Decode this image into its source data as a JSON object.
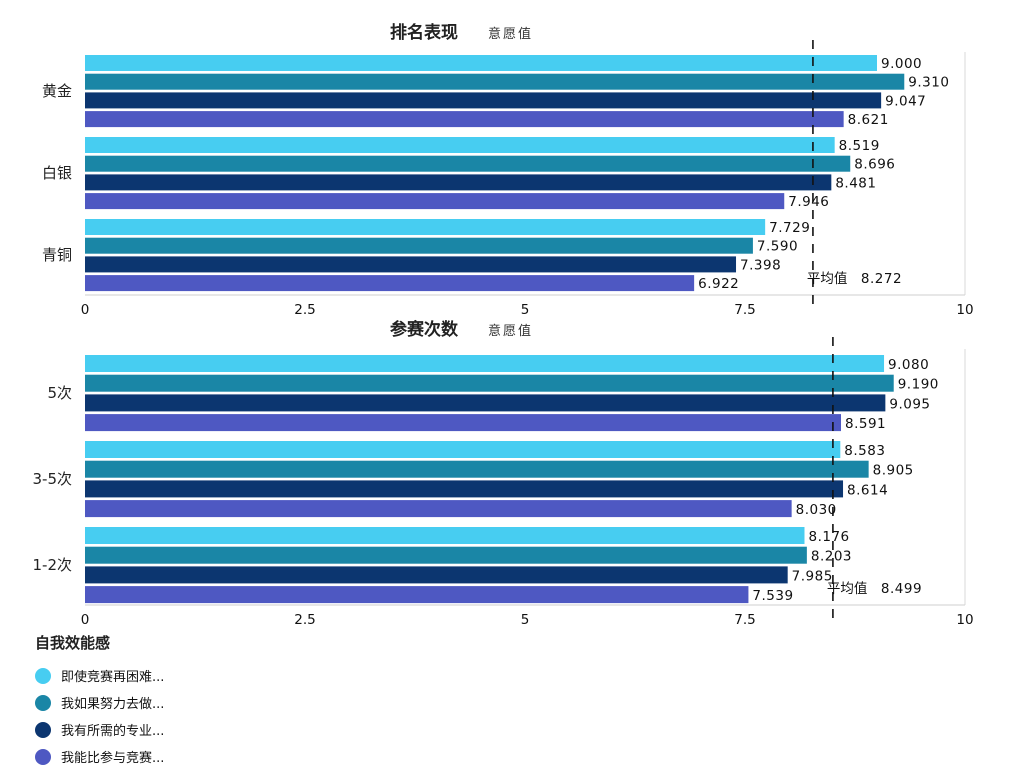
{
  "chart_data": [
    {
      "type": "bar",
      "orientation": "horizontal",
      "title": "排名表现",
      "subtitle": "意愿值",
      "categories": [
        "黄金",
        "白银",
        "青铜"
      ],
      "series": [
        {
          "name": "即使竞赛再困难...",
          "values": [
            9.0,
            8.519,
            7.729
          ]
        },
        {
          "name": "我如果努力去做...",
          "values": [
            9.31,
            8.696,
            7.59
          ]
        },
        {
          "name": "我有所需的专业...",
          "values": [
            9.047,
            8.481,
            7.398
          ]
        },
        {
          "name": "我能比参与竞赛...",
          "values": [
            8.621,
            7.946,
            6.922
          ]
        }
      ],
      "xlim": [
        0,
        10
      ],
      "ticks": [
        0,
        2.5,
        5,
        7.5,
        10
      ],
      "tick_labels": [
        "0",
        "2.5",
        "5",
        "7.5",
        "10"
      ],
      "average": 8.272,
      "average_label": "平均值",
      "average_text": "8.272"
    },
    {
      "type": "bar",
      "orientation": "horizontal",
      "title": "参赛次数",
      "subtitle": "意愿值",
      "categories": [
        "5次",
        "3-5次",
        "1-2次"
      ],
      "series": [
        {
          "name": "即使竞赛再困难...",
          "values": [
            9.08,
            8.583,
            8.176
          ]
        },
        {
          "name": "我如果努力去做...",
          "values": [
            9.19,
            8.905,
            8.203
          ]
        },
        {
          "name": "我有所需的专业...",
          "values": [
            9.095,
            8.614,
            7.985
          ]
        },
        {
          "name": "我能比参与竞赛...",
          "values": [
            8.591,
            8.03,
            7.539
          ]
        }
      ],
      "xlim": [
        0,
        10
      ],
      "ticks": [
        0,
        2.5,
        5,
        7.5,
        10
      ],
      "tick_labels": [
        "0",
        "2.5",
        "5",
        "7.5",
        "10"
      ],
      "average": 8.499,
      "average_label": "平均值",
      "average_text": "8.499"
    }
  ],
  "legend": {
    "title": "自我效能感",
    "items": [
      {
        "label": "即使竞赛再困难...",
        "color": "#47cdf1"
      },
      {
        "label": "我如果努力去做...",
        "color": "#1a86a6"
      },
      {
        "label": "我有所需的专业...",
        "color": "#0c3670"
      },
      {
        "label": "我能比参与竞赛...",
        "color": "#4e58c2"
      }
    ]
  },
  "colors": [
    "#47cdf1",
    "#1a86a6",
    "#0c3670",
    "#4e58c2"
  ]
}
